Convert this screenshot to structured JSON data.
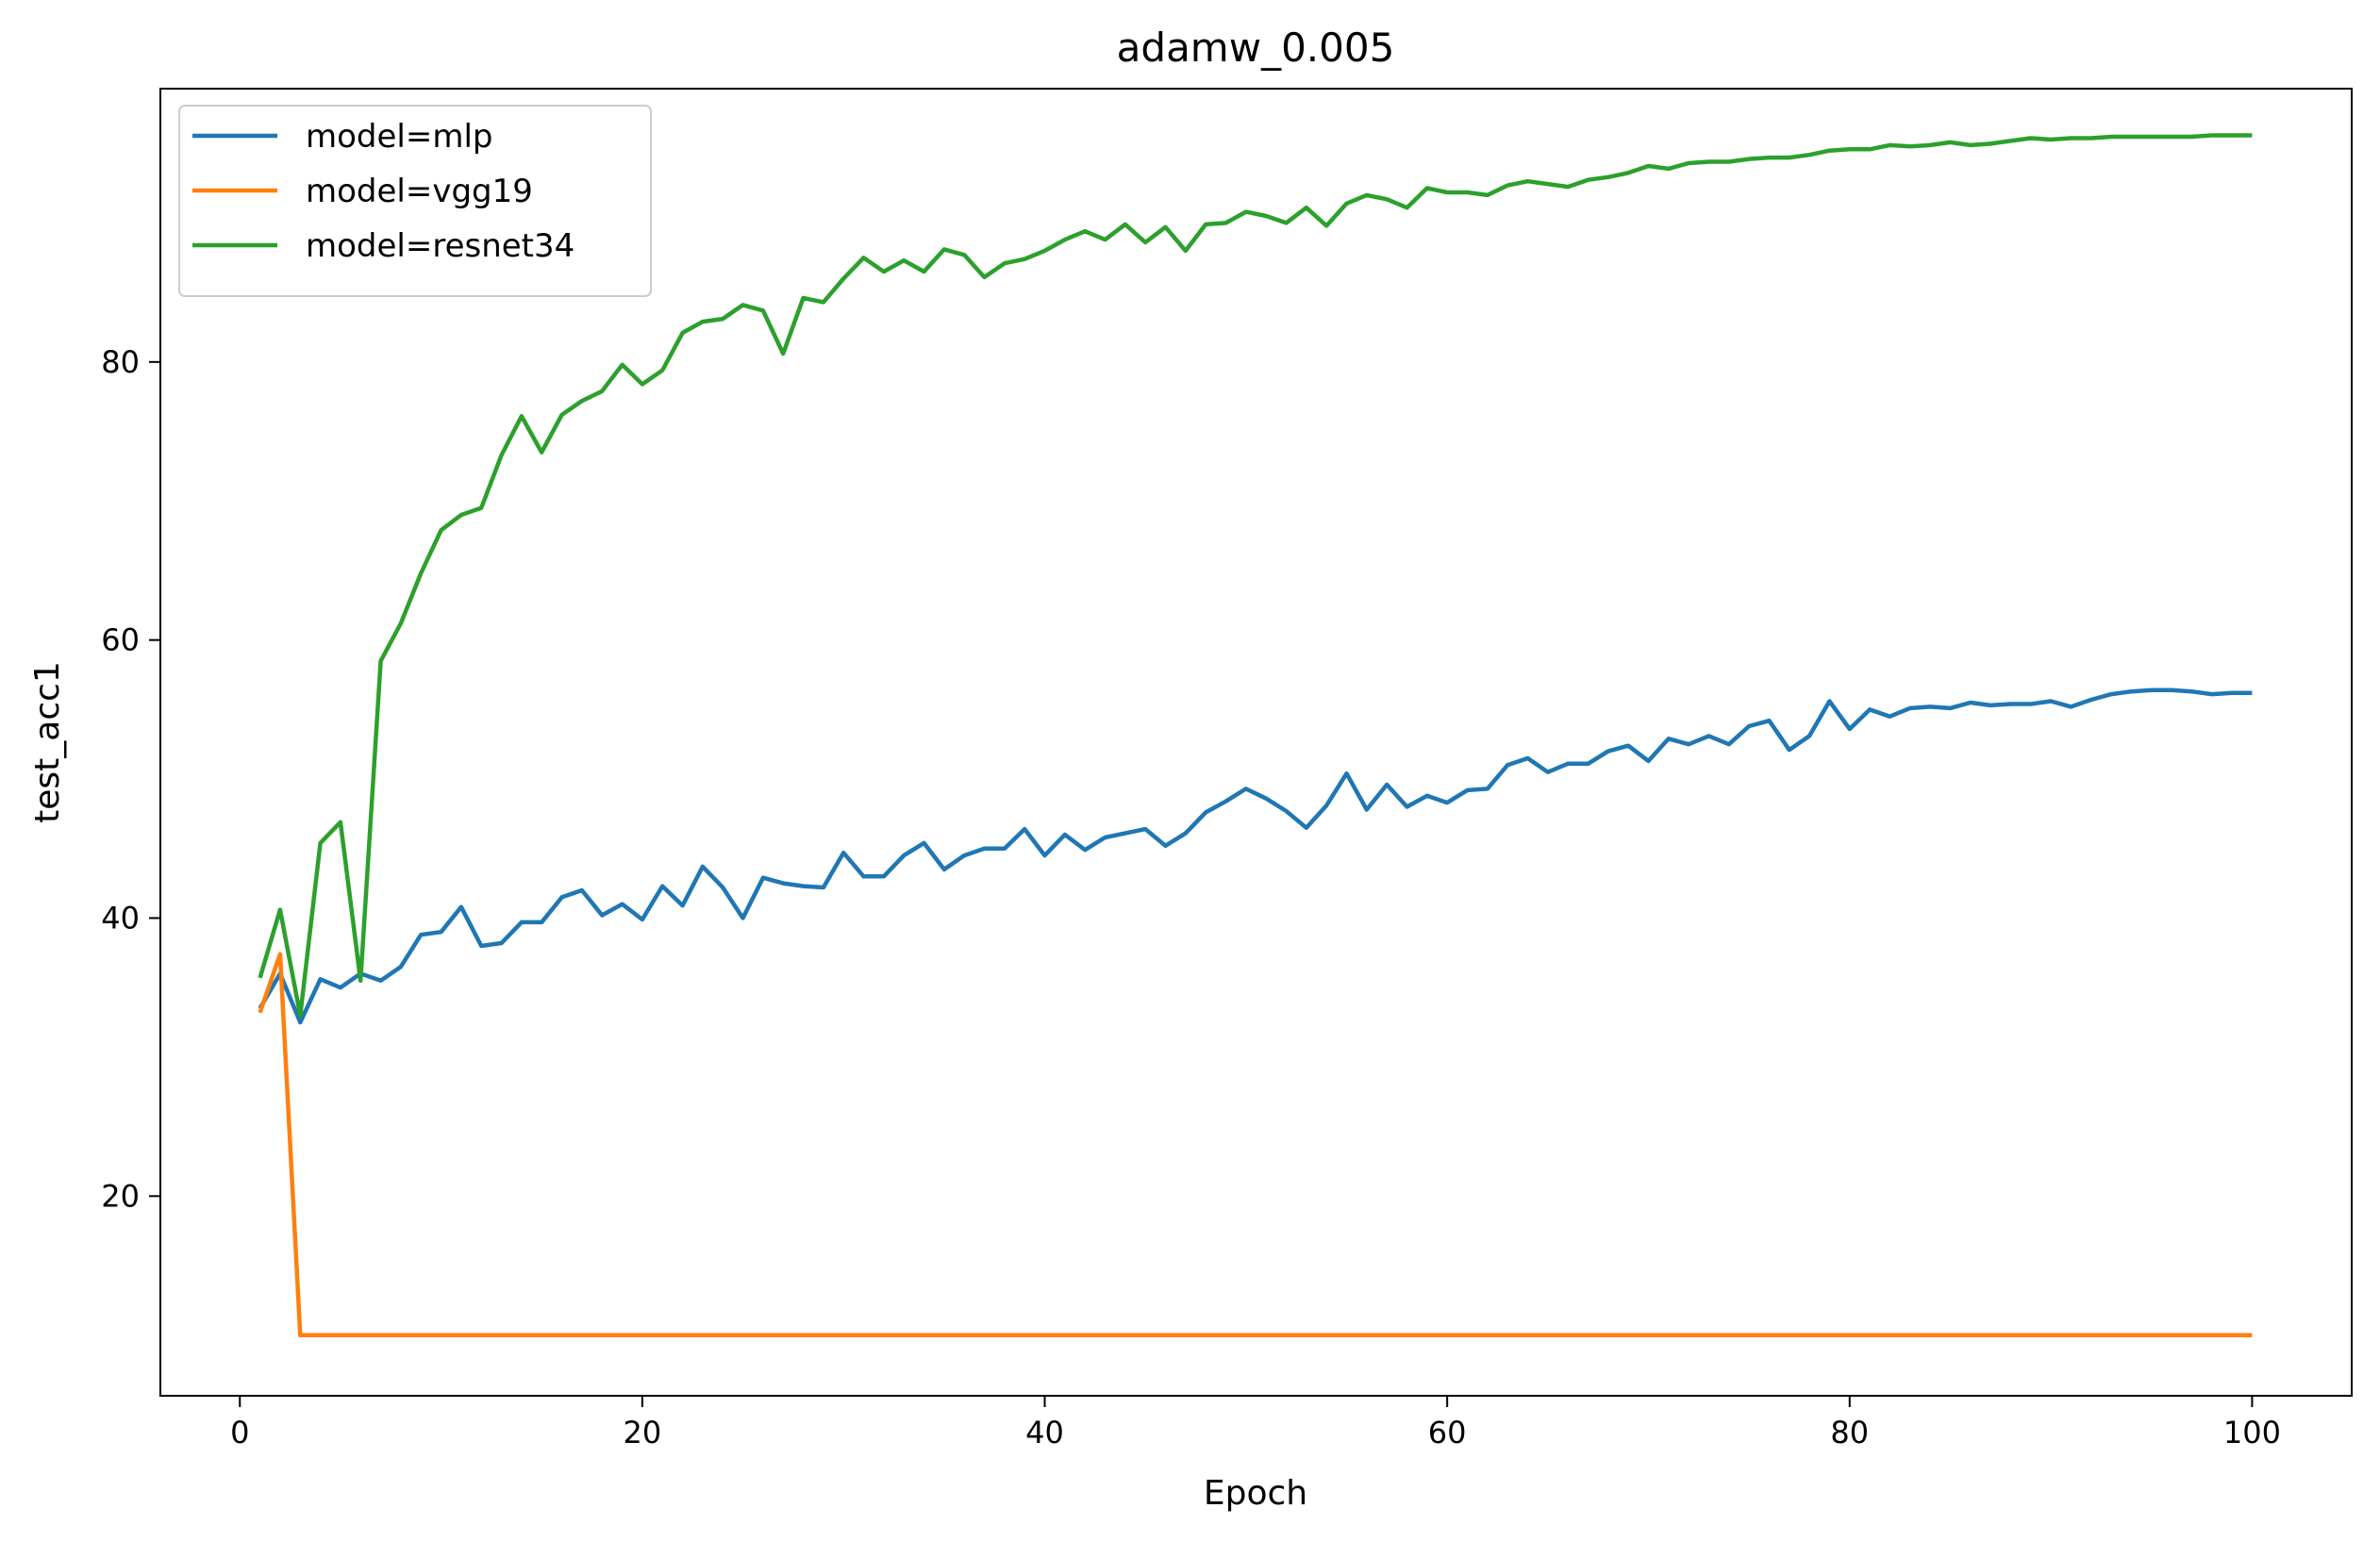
{
  "chart_data": {
    "type": "line",
    "title": "adamw_0.005",
    "xlabel": "Epoch",
    "ylabel": "test_acc1",
    "xlim": [
      -3.95,
      104.95
    ],
    "ylim": [
      5.64,
      99.66
    ],
    "xticks": [
      0,
      20,
      40,
      60,
      80,
      100
    ],
    "yticks": [
      20,
      40,
      60,
      80
    ],
    "grid": false,
    "legend_position": "top-left",
    "series": [
      {
        "name": "model=mlp",
        "color": "#1f77b4",
        "x": [
          1,
          2,
          3,
          4,
          5,
          6,
          7,
          8,
          9,
          10,
          11,
          12,
          13,
          14,
          15,
          16,
          17,
          18,
          19,
          20,
          21,
          22,
          23,
          24,
          25,
          26,
          27,
          28,
          29,
          30,
          31,
          32,
          33,
          34,
          35,
          36,
          37,
          38,
          39,
          40,
          41,
          42,
          43,
          44,
          45,
          46,
          47,
          48,
          49,
          50,
          51,
          52,
          53,
          54,
          55,
          56,
          57,
          58,
          59,
          60,
          61,
          62,
          63,
          64,
          65,
          66,
          67,
          68,
          69,
          70,
          71,
          72,
          73,
          74,
          75,
          76,
          77,
          78,
          79,
          80,
          81,
          82,
          83,
          84,
          85,
          86,
          87,
          88,
          89,
          90,
          91,
          92,
          93,
          94,
          95,
          96,
          97,
          98,
          99,
          100
        ],
        "values": [
          33.5,
          36.0,
          32.5,
          35.6,
          35.0,
          36.0,
          35.5,
          36.5,
          38.8,
          39.0,
          40.8,
          38.0,
          38.2,
          39.7,
          39.7,
          41.5,
          42.0,
          40.2,
          41.0,
          39.9,
          42.3,
          40.9,
          43.7,
          42.2,
          40.0,
          42.9,
          42.5,
          42.3,
          42.2,
          44.7,
          43.0,
          43.0,
          44.5,
          45.4,
          43.5,
          44.5,
          45.0,
          45.0,
          46.4,
          44.5,
          46.0,
          44.9,
          45.8,
          46.1,
          46.4,
          45.2,
          46.1,
          47.6,
          48.4,
          49.3,
          48.6,
          47.7,
          46.5,
          48.1,
          50.4,
          47.8,
          49.6,
          48.0,
          48.8,
          48.3,
          49.2,
          49.3,
          51.0,
          51.5,
          50.5,
          51.1,
          51.1,
          52.0,
          52.4,
          51.3,
          52.9,
          52.5,
          53.1,
          52.5,
          53.8,
          54.2,
          52.1,
          53.1,
          55.6,
          53.6,
          55.0,
          54.5,
          55.1,
          55.2,
          55.1,
          55.5,
          55.3,
          55.4,
          55.4,
          55.6,
          55.2,
          55.7,
          56.1,
          56.3,
          56.4,
          56.4,
          56.3,
          56.1,
          56.2,
          56.2
        ]
      },
      {
        "name": "model=vgg19",
        "color": "#ff7f0e",
        "x": [
          1,
          2,
          3,
          4,
          5,
          6,
          7,
          8,
          9,
          10,
          11,
          12,
          13,
          14,
          15,
          16,
          17,
          18,
          19,
          20,
          21,
          22,
          23,
          24,
          25,
          26,
          27,
          28,
          29,
          30,
          31,
          32,
          33,
          34,
          35,
          36,
          37,
          38,
          39,
          40,
          41,
          42,
          43,
          44,
          45,
          46,
          47,
          48,
          49,
          50,
          51,
          52,
          53,
          54,
          55,
          56,
          57,
          58,
          59,
          60,
          61,
          62,
          63,
          64,
          65,
          66,
          67,
          68,
          69,
          70,
          71,
          72,
          73,
          74,
          75,
          76,
          77,
          78,
          79,
          80,
          81,
          82,
          83,
          84,
          85,
          86,
          87,
          88,
          89,
          90,
          91,
          92,
          93,
          94,
          95,
          96,
          97,
          98,
          99,
          100
        ],
        "values": [
          33.2,
          37.4,
          10.0,
          10.0,
          10.0,
          10.0,
          10.0,
          10.0,
          10.0,
          10.0,
          10.0,
          10.0,
          10.0,
          10.0,
          10.0,
          10.0,
          10.0,
          10.0,
          10.0,
          10.0,
          10.0,
          10.0,
          10.0,
          10.0,
          10.0,
          10.0,
          10.0,
          10.0,
          10.0,
          10.0,
          10.0,
          10.0,
          10.0,
          10.0,
          10.0,
          10.0,
          10.0,
          10.0,
          10.0,
          10.0,
          10.0,
          10.0,
          10.0,
          10.0,
          10.0,
          10.0,
          10.0,
          10.0,
          10.0,
          10.0,
          10.0,
          10.0,
          10.0,
          10.0,
          10.0,
          10.0,
          10.0,
          10.0,
          10.0,
          10.0,
          10.0,
          10.0,
          10.0,
          10.0,
          10.0,
          10.0,
          10.0,
          10.0,
          10.0,
          10.0,
          10.0,
          10.0,
          10.0,
          10.0,
          10.0,
          10.0,
          10.0,
          10.0,
          10.0,
          10.0,
          10.0,
          10.0,
          10.0,
          10.0,
          10.0,
          10.0,
          10.0,
          10.0,
          10.0,
          10.0,
          10.0,
          10.0,
          10.0,
          10.0,
          10.0,
          10.0,
          10.0,
          10.0,
          10.0,
          10.0
        ]
      },
      {
        "name": "model=resnet34",
        "color": "#2ca02c",
        "x": [
          1,
          2,
          3,
          4,
          5,
          6,
          7,
          8,
          9,
          10,
          11,
          12,
          13,
          14,
          15,
          16,
          17,
          18,
          19,
          20,
          21,
          22,
          23,
          24,
          25,
          26,
          27,
          28,
          29,
          30,
          31,
          32,
          33,
          34,
          35,
          36,
          37,
          38,
          39,
          40,
          41,
          42,
          43,
          44,
          45,
          46,
          47,
          48,
          49,
          50,
          51,
          52,
          53,
          54,
          55,
          56,
          57,
          58,
          59,
          60,
          61,
          62,
          63,
          64,
          65,
          66,
          67,
          68,
          69,
          70,
          71,
          72,
          73,
          74,
          75,
          76,
          77,
          78,
          79,
          80,
          81,
          82,
          83,
          84,
          85,
          86,
          87,
          88,
          89,
          90,
          91,
          92,
          93,
          94,
          95,
          96,
          97,
          98,
          99,
          100
        ],
        "values": [
          35.7,
          40.6,
          33.0,
          45.4,
          46.9,
          35.5,
          58.5,
          61.2,
          64.8,
          67.9,
          69.0,
          69.5,
          73.3,
          76.1,
          73.5,
          76.2,
          77.2,
          77.9,
          79.8,
          78.4,
          79.4,
          82.1,
          82.9,
          83.1,
          84.1,
          83.7,
          80.6,
          84.6,
          84.3,
          86.0,
          87.5,
          86.5,
          87.3,
          86.5,
          88.1,
          87.7,
          86.1,
          87.1,
          87.4,
          88.0,
          88.8,
          89.4,
          88.8,
          89.9,
          88.6,
          89.7,
          88.0,
          89.9,
          90.0,
          90.8,
          90.5,
          90.0,
          91.1,
          89.8,
          91.4,
          92.0,
          91.7,
          91.1,
          92.5,
          92.2,
          92.2,
          92.0,
          92.7,
          93.0,
          92.8,
          92.6,
          93.1,
          93.3,
          93.6,
          94.1,
          93.9,
          94.3,
          94.4,
          94.4,
          94.6,
          94.7,
          94.7,
          94.9,
          95.2,
          95.3,
          95.3,
          95.6,
          95.5,
          95.6,
          95.8,
          95.6,
          95.7,
          95.9,
          96.1,
          96.0,
          96.1,
          96.1,
          96.2,
          96.2,
          96.2,
          96.2,
          96.2,
          96.3,
          96.3,
          96.3
        ]
      }
    ]
  }
}
